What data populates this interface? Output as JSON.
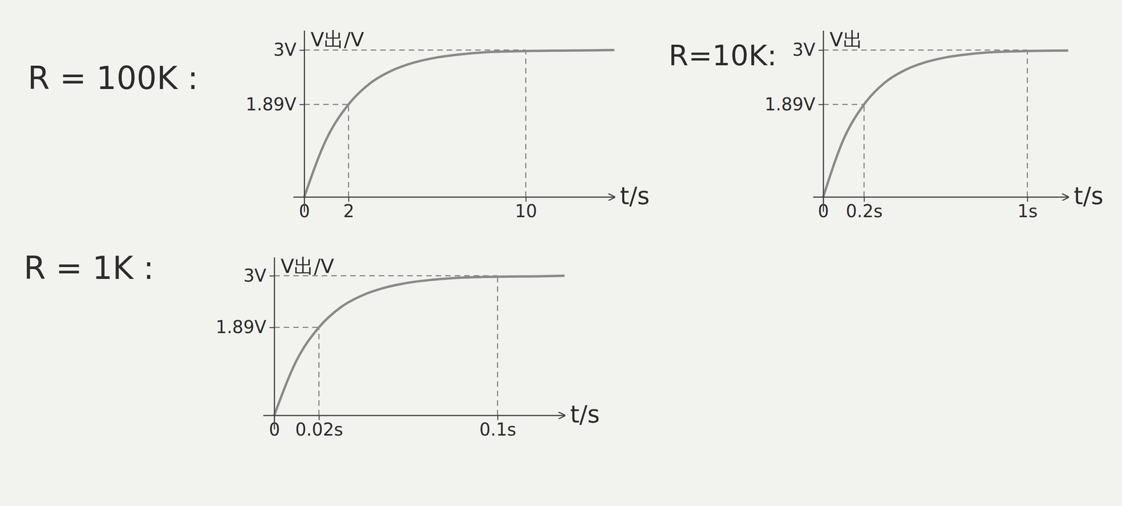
{
  "chart_data": [
    {
      "type": "line",
      "title": "R = 100K :",
      "x_label": "t/s",
      "y_label": "V出/V",
      "x": [
        0,
        1,
        2,
        3,
        4,
        5,
        6,
        7,
        8,
        10,
        12,
        14
      ],
      "values": [
        0,
        1.18,
        1.89,
        2.33,
        2.59,
        2.75,
        2.85,
        2.91,
        2.95,
        2.98,
        2.99,
        3.0
      ],
      "color": "#8a8a8a",
      "xlim": [
        -0.5,
        14
      ],
      "ylim": [
        -0.3,
        3.4
      ],
      "xticks": [
        0,
        2,
        10
      ],
      "yticks": [
        {
          "value": 1.89,
          "label": "1.89V"
        },
        {
          "value": 3,
          "label": "3V"
        }
      ],
      "marked_points": {
        "x": [
          2,
          10
        ],
        "y": [
          1.89,
          3
        ]
      }
    },
    {
      "type": "line",
      "title": "R=10K:",
      "x_label": "t/s",
      "y_label": "V出",
      "x": [
        0,
        0.1,
        0.2,
        0.3,
        0.4,
        0.5,
        0.6,
        0.7,
        0.8,
        1,
        1.2
      ],
      "values": [
        0,
        1.18,
        1.89,
        2.33,
        2.59,
        2.75,
        2.85,
        2.91,
        2.95,
        2.98,
        2.99
      ],
      "color": "#8a8a8a",
      "xlim": [
        -0.05,
        1.2
      ],
      "ylim": [
        -0.3,
        3.4
      ],
      "xticks": [
        0,
        {
          "value": 0.2,
          "label": "0.2s"
        },
        {
          "value": 1,
          "label": "1s"
        }
      ],
      "yticks": [
        {
          "value": 1.89,
          "label": "1.89V"
        },
        {
          "value": 3,
          "label": "3V"
        }
      ],
      "marked_points": {
        "x": [
          0.2,
          1
        ],
        "y": [
          1.89,
          3
        ]
      }
    },
    {
      "type": "line",
      "title": "R = 1K :",
      "x_label": "t/s",
      "y_label": "V出/V",
      "x": [
        0,
        0.01,
        0.02,
        0.03,
        0.04,
        0.05,
        0.06,
        0.07,
        0.08,
        0.1,
        0.12,
        0.13
      ],
      "values": [
        0,
        1.18,
        1.89,
        2.33,
        2.59,
        2.75,
        2.85,
        2.91,
        2.95,
        2.98,
        2.99,
        3.0
      ],
      "color": "#8a8a8a",
      "xlim": [
        -0.005,
        0.13
      ],
      "ylim": [
        -0.3,
        3.4
      ],
      "xticks": [
        0,
        {
          "value": 0.02,
          "label": "0.02s"
        },
        {
          "value": 0.1,
          "label": "0.1s"
        }
      ],
      "yticks": [
        {
          "value": 1.89,
          "label": "1.89V"
        },
        {
          "value": 3,
          "label": "3V"
        }
      ],
      "marked_points": {
        "x": [
          0.02,
          0.1
        ],
        "y": [
          1.89,
          3
        ]
      }
    }
  ]
}
